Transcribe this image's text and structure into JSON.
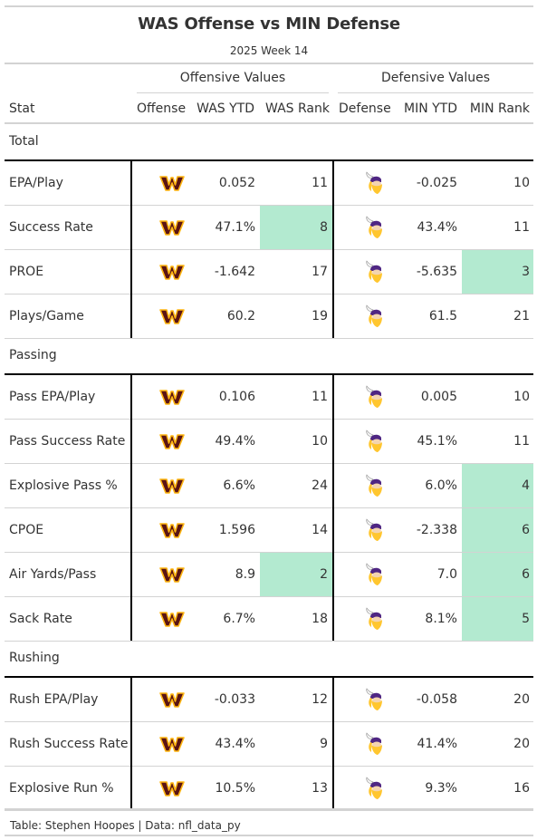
{
  "header": {
    "title": "WAS Offense vs MIN Defense",
    "subtitle": "2025 Week 14"
  },
  "spanners": {
    "offense": "Offensive Values",
    "defense": "Defensive Values"
  },
  "columns": {
    "stat": "Stat",
    "offense": "Offense",
    "was_ytd": "WAS YTD",
    "was_rank": "WAS Rank",
    "defense": "Defense",
    "min_ytd": "MIN YTD",
    "min_rank": "MIN Rank"
  },
  "colors": {
    "highlight": "#b3ead0",
    "was_burgundy": "#5a1414",
    "was_gold": "#ffb612",
    "min_purple": "#4f2683",
    "min_gold": "#ffc62f"
  },
  "icons": {
    "offense_logo": "commanders-logo-icon",
    "defense_logo": "vikings-logo-icon"
  },
  "groups": [
    {
      "label": "Total",
      "rows": [
        {
          "stat": "EPA/Play",
          "was_ytd": "0.052",
          "was_rank": "11",
          "min_ytd": "-0.025",
          "min_rank": "10",
          "was_hl": false,
          "min_hl": false
        },
        {
          "stat": "Success Rate",
          "was_ytd": "47.1%",
          "was_rank": "8",
          "min_ytd": "43.4%",
          "min_rank": "11",
          "was_hl": true,
          "min_hl": false
        },
        {
          "stat": "PROE",
          "was_ytd": "-1.642",
          "was_rank": "17",
          "min_ytd": "-5.635",
          "min_rank": "3",
          "was_hl": false,
          "min_hl": true
        },
        {
          "stat": "Plays/Game",
          "was_ytd": "60.2",
          "was_rank": "19",
          "min_ytd": "61.5",
          "min_rank": "21",
          "was_hl": false,
          "min_hl": false
        }
      ]
    },
    {
      "label": "Passing",
      "rows": [
        {
          "stat": "Pass EPA/Play",
          "was_ytd": "0.106",
          "was_rank": "11",
          "min_ytd": "0.005",
          "min_rank": "10",
          "was_hl": false,
          "min_hl": false
        },
        {
          "stat": "Pass Success Rate",
          "was_ytd": "49.4%",
          "was_rank": "10",
          "min_ytd": "45.1%",
          "min_rank": "11",
          "was_hl": false,
          "min_hl": false
        },
        {
          "stat": "Explosive Pass %",
          "was_ytd": "6.6%",
          "was_rank": "24",
          "min_ytd": "6.0%",
          "min_rank": "4",
          "was_hl": false,
          "min_hl": true
        },
        {
          "stat": "CPOE",
          "was_ytd": "1.596",
          "was_rank": "14",
          "min_ytd": "-2.338",
          "min_rank": "6",
          "was_hl": false,
          "min_hl": true
        },
        {
          "stat": "Air Yards/Pass",
          "was_ytd": "8.9",
          "was_rank": "2",
          "min_ytd": "7.0",
          "min_rank": "6",
          "was_hl": true,
          "min_hl": true
        },
        {
          "stat": "Sack Rate",
          "was_ytd": "6.7%",
          "was_rank": "18",
          "min_ytd": "8.1%",
          "min_rank": "5",
          "was_hl": false,
          "min_hl": true
        }
      ]
    },
    {
      "label": "Rushing",
      "rows": [
        {
          "stat": "Rush EPA/Play",
          "was_ytd": "-0.033",
          "was_rank": "12",
          "min_ytd": "-0.058",
          "min_rank": "20",
          "was_hl": false,
          "min_hl": false
        },
        {
          "stat": "Rush Success Rate",
          "was_ytd": "43.4%",
          "was_rank": "9",
          "min_ytd": "41.4%",
          "min_rank": "20",
          "was_hl": false,
          "min_hl": false
        },
        {
          "stat": "Explosive Run %",
          "was_ytd": "10.5%",
          "was_rank": "13",
          "min_ytd": "9.3%",
          "min_rank": "16",
          "was_hl": false,
          "min_hl": false
        }
      ]
    }
  ],
  "footer": {
    "source": "Table: Stephen Hoopes | Data: nfl_data_py"
  }
}
